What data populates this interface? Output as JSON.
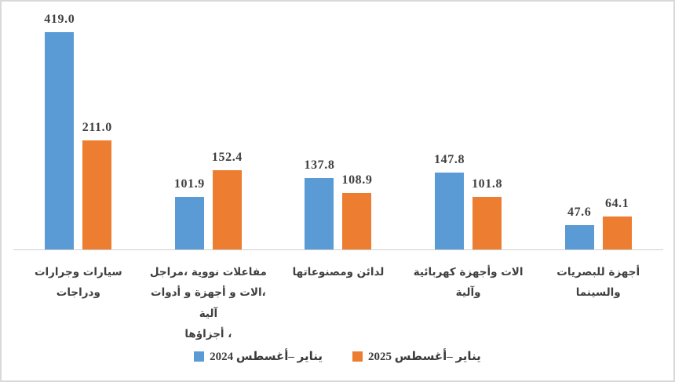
{
  "chart_data": {
    "type": "bar",
    "title": "",
    "direction": "rtl",
    "categories": [
      "سيارات وجرارات ودراجات",
      "مفاعلات نووية ،مراجل\n،الات و أجهزة و أدوات آلية\n، أجزاؤها",
      "لدائن ومصنوعاتها",
      "الات وأجهزة كهربائية وآلية",
      "أجهزة للبصريات والسينما"
    ],
    "series": [
      {
        "name": "يناير –أغسطس 2024",
        "color": "#5B9BD5",
        "values": [
          419.0,
          101.9,
          137.8,
          147.8,
          47.6
        ]
      },
      {
        "name": "يناير –أغسطس 2025",
        "color": "#ED7D31",
        "values": [
          211.0,
          152.4,
          108.9,
          101.8,
          64.1
        ]
      }
    ],
    "value_label_decimals": 1,
    "ylim": [
      0,
      440
    ],
    "grid": false,
    "y_axis_visible": false,
    "x_axis_line_visible": true,
    "legend_position": "bottom"
  },
  "colors": {
    "series_2024": "#5B9BD5",
    "series_2025": "#ED7D31",
    "value_label_text": "#404040",
    "category_label_text": "#404040",
    "axis_line": "#cfcfcf",
    "frame_border": "#d9d9d9",
    "background": "#ffffff"
  }
}
